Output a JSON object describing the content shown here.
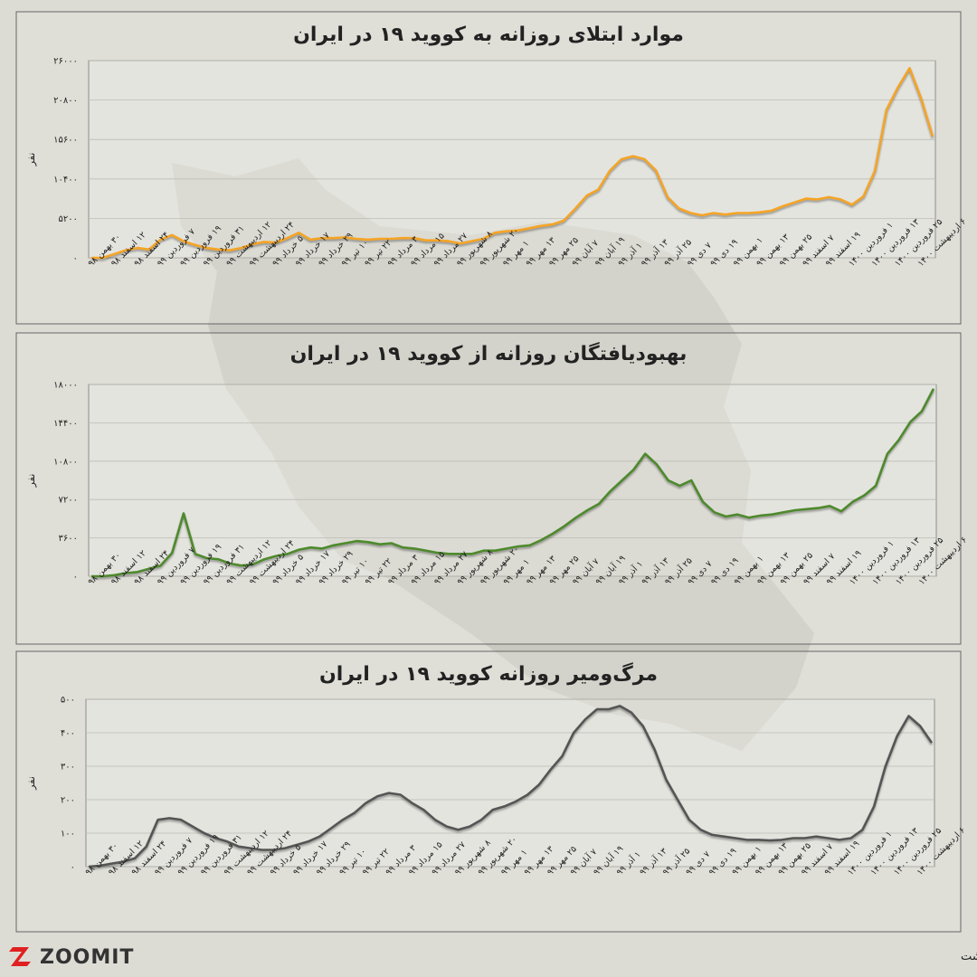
{
  "chart_data": [
    {
      "type": "line",
      "title": "موارد ابتلای روزانه به کووید ۱۹ در ایران",
      "ylabel": "نفر",
      "color": "#f5a425",
      "grid": true,
      "categories": [
        "۳۰ بهمن ۹۸",
        null,
        "۱۲ اسفند ۹۸",
        null,
        "۲۴ اسفند ۹۸",
        null,
        "۷ فروردین ۹۹",
        null,
        "۱۹ فروردین ۹۹",
        null,
        "۳۱ فروردین ۹۹",
        null,
        "۱۲ اردیبهشت ۹۹",
        null,
        "۲۴ اردیبهشت ۹۹",
        null,
        "۵ خرداد ۹۹",
        null,
        "۱۷ خرداد ۹۹",
        null,
        "۲۹ خرداد ۹۹",
        null,
        "۱۰ تیر ۹۹",
        null,
        "۲۲ تیر ۹۹",
        null,
        "۳ مرداد ۹۹",
        null,
        "۱۵ مرداد ۹۹",
        null,
        "۲۷ مرداد ۹۹",
        null,
        "۸ شهریور ۹۹",
        null,
        "۲۰ شهریور ۹۹",
        null,
        "۱ مهر ۹۹",
        null,
        "۱۳ مهر ۹۹",
        null,
        "۲۵ مهر ۹۹",
        null,
        "۷ آبان ۹۹",
        null,
        "۱۹ آبان ۹۹",
        null,
        "۱ آذر ۹۹",
        null,
        "۱۳ آذر ۹۹",
        null,
        "۲۵ آذر ۹۹",
        null,
        "۷ دی ۹۹",
        null,
        "۱۹ دی ۹۹",
        null,
        "۱ بهمن ۹۹",
        null,
        "۱۳ بهمن ۹۹",
        null,
        "۲۵ بهمن ۹۹",
        null,
        "۷ اسفند ۹۹",
        null,
        "۱۹ اسفند ۹۹",
        null,
        "۱ فروردین ۱۴۰۰",
        null,
        "۱۳ فروردین ۱۴۰۰",
        null,
        "۲۵ فروردین ۱۴۰۰",
        null,
        "۶ اردیبهشت ۱۴۰۰",
        null
      ],
      "values": [
        0,
        0,
        500,
        1000,
        1300,
        1100,
        2400,
        3000,
        2200,
        1700,
        1300,
        1100,
        1000,
        1300,
        1800,
        2100,
        2000,
        2600,
        3300,
        2400,
        2600,
        2600,
        2700,
        2500,
        2400,
        2500,
        2500,
        2600,
        2600,
        2300,
        2300,
        2200,
        1900,
        2200,
        2500,
        3300,
        3500,
        3600,
        3900,
        4200,
        4400,
        4900,
        6500,
        8200,
        9000,
        11500,
        13000,
        13400,
        13000,
        11500,
        8000,
        6500,
        5900,
        5600,
        5900,
        5700,
        5900,
        5900,
        6000,
        6200,
        6800,
        7300,
        7800,
        7700,
        8000,
        7700,
        7000,
        8100,
        11500,
        19500,
        22500,
        25000,
        21000,
        16000
      ],
      "ylim": [
        0,
        26000
      ],
      "yticks": [
        {
          "value": 0,
          "label": "۰"
        },
        {
          "value": 5200,
          "label": "۵۲۰۰"
        },
        {
          "value": 10400,
          "label": "۱۰۴۰۰"
        },
        {
          "value": 15600,
          "label": "۱۵۶۰۰"
        },
        {
          "value": 20800,
          "label": "۲۰۸۰۰"
        },
        {
          "value": 26000,
          "label": "۲۶۰۰۰"
        }
      ]
    },
    {
      "type": "line",
      "title": "بهبودیافتگان روزانه از کووید ۱۹ در ایران",
      "ylabel": "نفر",
      "color": "#4e8a2c",
      "grid": true,
      "categories": [
        "۳۰ بهمن ۹۸",
        null,
        "۱۲ اسفند ۹۸",
        null,
        "۲۴ اسفند ۹۸",
        null,
        "۷ فروردین ۹۹",
        null,
        "۱۹ فروردین ۹۹",
        null,
        "۳۱ فروردین ۹۹",
        null,
        "۱۲ اردیبهشت ۹۹",
        null,
        "۲۴ اردیبهشت ۹۹",
        null,
        "۵ خرداد ۹۹",
        null,
        "۱۷ خرداد ۹۹",
        null,
        "۲۹ خرداد ۹۹",
        null,
        "۱۰ تیر ۹۹",
        null,
        "۲۲ تیر ۹۹",
        null,
        "۳ مرداد ۹۹",
        null,
        "۱۵ مرداد ۹۹",
        null,
        "۲۷ مرداد ۹۹",
        null,
        "۸ شهریور ۹۹",
        null,
        "۲۰ شهریور ۹۹",
        null,
        "۱ مهر ۹۹",
        null,
        "۱۳ مهر ۹۹",
        null,
        "۲۵ مهر ۹۹",
        null,
        "۷ آبان ۹۹",
        null,
        "۱۹ آبان ۹۹",
        null,
        "۱ آذر ۹۹",
        null,
        "۱۳ آذر ۹۹",
        null,
        "۲۵ آذر ۹۹",
        null,
        "۷ دی ۹۹",
        null,
        "۱۹ دی ۹۹",
        null,
        "۱ بهمن ۹۹",
        null,
        "۱۳ بهمن ۹۹",
        null,
        "۲۵ بهمن ۹۹",
        null,
        "۷ اسفند ۹۹",
        null,
        "۱۹ اسفند ۹۹",
        null,
        "۱ فروردین ۱۴۰۰",
        null,
        "۱۳ فروردین ۱۴۰۰",
        null,
        "۲۵ فروردین ۱۴۰۰",
        null,
        "۶ اردیبهشت ۱۴۰۰",
        null
      ],
      "values": [
        0,
        0,
        100,
        300,
        400,
        700,
        1000,
        2200,
        5900,
        2100,
        1700,
        1600,
        1200,
        1000,
        1100,
        1600,
        1900,
        2100,
        2500,
        2700,
        2600,
        2900,
        3100,
        3300,
        3200,
        3000,
        3100,
        2700,
        2600,
        2400,
        2200,
        2100,
        2100,
        2100,
        2400,
        2400,
        2600,
        2800,
        2900,
        3400,
        4000,
        4700,
        5500,
        6200,
        6800,
        8000,
        9000,
        10000,
        11500,
        10500,
        9000,
        8500,
        9000,
        7000,
        6000,
        5600,
        5800,
        5500,
        5700,
        5800,
        6000,
        6200,
        6300,
        6400,
        6600,
        6100,
        7000,
        7600,
        8500,
        11500,
        12800,
        14500,
        15500,
        17600
      ],
      "ylim": [
        0,
        18000
      ],
      "yticks": [
        {
          "value": 0,
          "label": "۰"
        },
        {
          "value": 3600,
          "label": "۳۶۰۰"
        },
        {
          "value": 7200,
          "label": "۷۲۰۰"
        },
        {
          "value": 10800,
          "label": "۱۰۸۰۰"
        },
        {
          "value": 14400,
          "label": "۱۴۴۰۰"
        },
        {
          "value": 18000,
          "label": "۱۸۰۰۰"
        }
      ]
    },
    {
      "type": "line",
      "title": "مرگ‌ومیر روزانه کووید ۱۹ در ایران",
      "ylabel": "نفر",
      "color": "#555555",
      "grid": true,
      "categories": [
        "۳۰ بهمن ۹۸",
        null,
        "۱۲ اسفند ۹۸",
        null,
        "۲۴ اسفند ۹۸",
        null,
        "۷ فروردین ۹۹",
        null,
        "۱۹ فروردین ۹۹",
        null,
        "۳۱ فروردین ۹۹",
        null,
        "۱۲ اردیبهشت ۹۹",
        null,
        "۲۴ اردیبهشت ۹۹",
        null,
        "۵ خرداد ۹۹",
        null,
        "۱۷ خرداد ۹۹",
        null,
        "۲۹ خرداد ۹۹",
        null,
        "۱۰ تیر ۹۹",
        null,
        "۲۲ تیر ۹۹",
        null,
        "۳ مرداد ۹۹",
        null,
        "۱۵ مرداد ۹۹",
        null,
        "۲۷ مرداد ۹۹",
        null,
        "۸ شهریور ۹۹",
        null,
        "۲۰ شهریور ۹۹",
        null,
        "۱ مهر ۹۹",
        null,
        "۱۳ مهر ۹۹",
        null,
        "۲۵ مهر ۹۹",
        null,
        "۷ آبان ۹۹",
        null,
        "۱۹ آبان ۹۹",
        null,
        "۱ آذر ۹۹",
        null,
        "۱۳ آذر ۹۹",
        null,
        "۲۵ آذر ۹۹",
        null,
        "۷ دی ۹۹",
        null,
        "۱۹ دی ۹۹",
        null,
        "۱ بهمن ۹۹",
        null,
        "۱۳ بهمن ۹۹",
        null,
        "۲۵ بهمن ۹۹",
        null,
        "۷ اسفند ۹۹",
        null,
        "۱۹ اسفند ۹۹",
        null,
        "۱ فروردین ۱۴۰۰",
        null,
        "۱۳ فروردین ۱۴۰۰",
        null,
        "۲۵ فروردین ۱۴۰۰",
        null,
        "۶ اردیبهشت ۱۴۰۰",
        null
      ],
      "values": [
        0,
        3,
        9,
        15,
        25,
        60,
        140,
        145,
        140,
        120,
        100,
        85,
        75,
        60,
        55,
        50,
        50,
        55,
        65,
        75,
        90,
        115,
        140,
        160,
        190,
        210,
        220,
        215,
        190,
        170,
        140,
        120,
        110,
        120,
        140,
        170,
        180,
        195,
        215,
        245,
        290,
        330,
        400,
        440,
        470,
        470,
        480,
        460,
        420,
        350,
        260,
        200,
        140,
        110,
        95,
        90,
        85,
        80,
        80,
        78,
        80,
        85,
        85,
        90,
        85,
        80,
        85,
        110,
        180,
        300,
        390,
        450,
        420,
        370
      ],
      "ylim": [
        0,
        500
      ],
      "yticks": [
        {
          "value": 0,
          "label": "۰"
        },
        {
          "value": 100,
          "label": "۱۰۰"
        },
        {
          "value": 200,
          "label": "۲۰۰"
        },
        {
          "value": 300,
          "label": "۳۰۰"
        },
        {
          "value": 400,
          "label": "۴۰۰"
        },
        {
          "value": 500,
          "label": "۵۰۰"
        }
      ]
    }
  ],
  "footer": {
    "brand": "ZOOMIT",
    "source": "منبع: وزارت بهداشت"
  }
}
